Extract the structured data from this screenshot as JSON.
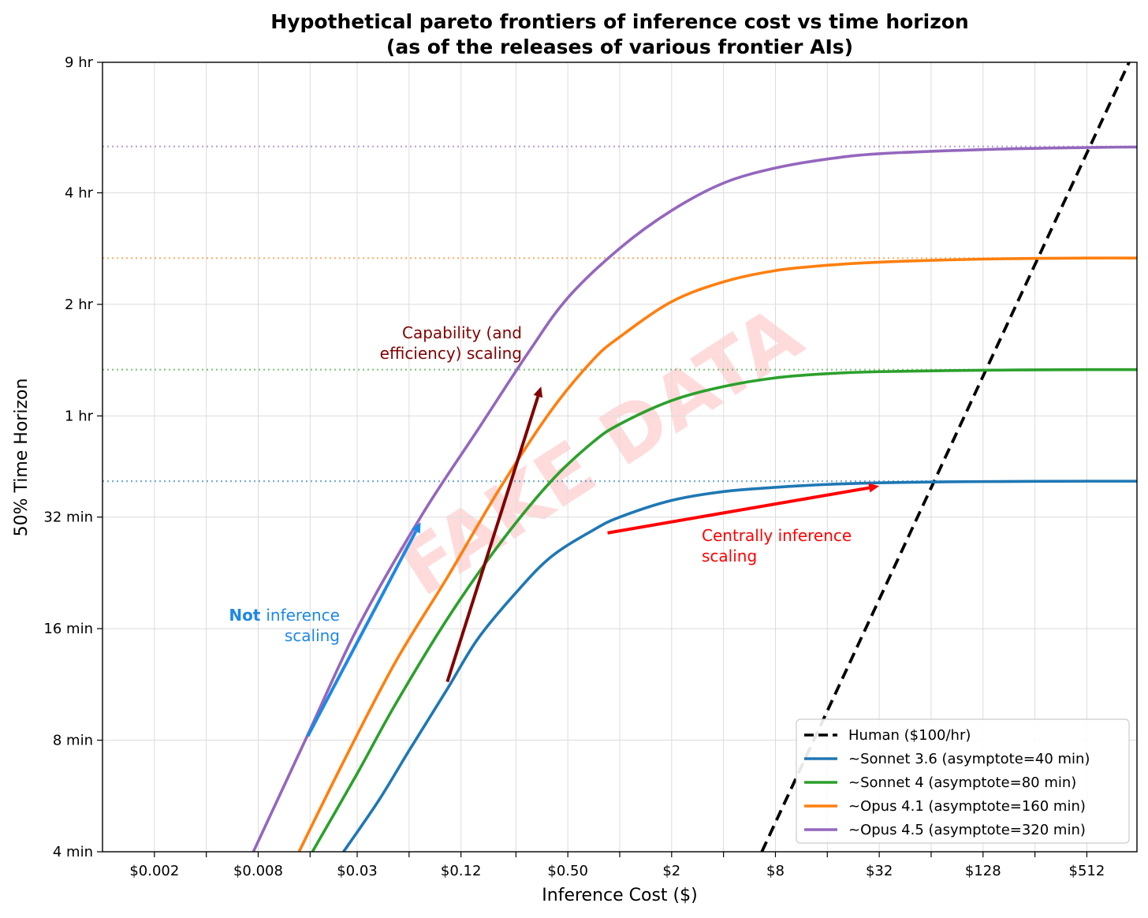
{
  "chart_data": {
    "type": "line",
    "title": "Hypothetical pareto frontiers of inference cost vs time horizon",
    "subtitle": "(as of the releases of various frontier AIs)",
    "xlabel": "Inference Cost ($)",
    "ylabel": "50% Time Horizon",
    "x_scale": "log2",
    "y_scale": "log2",
    "xlim": [
      0.001,
      1000
    ],
    "ylim": [
      4,
      540
    ],
    "x_ticks": [
      {
        "value": 0.002,
        "label": "$0.002"
      },
      {
        "value": 0.008,
        "label": "$0.008"
      },
      {
        "value": 0.03,
        "label": "$0.03"
      },
      {
        "value": 0.12,
        "label": "$0.12"
      },
      {
        "value": 0.5,
        "label": "$0.50"
      },
      {
        "value": 2,
        "label": "$2"
      },
      {
        "value": 8,
        "label": "$8"
      },
      {
        "value": 32,
        "label": "$32"
      },
      {
        "value": 128,
        "label": "$128"
      },
      {
        "value": 512,
        "label": "$512"
      }
    ],
    "x_minor_ticks": [
      0.004,
      0.016,
      0.06,
      0.25,
      1,
      4,
      16,
      64,
      256
    ],
    "y_ticks": [
      {
        "value": 4,
        "label": "4 min"
      },
      {
        "value": 8,
        "label": "8 min"
      },
      {
        "value": 16,
        "label": "16 min"
      },
      {
        "value": 32,
        "label": "32 min"
      },
      {
        "value": 60,
        "label": "1 hr"
      },
      {
        "value": 120,
        "label": "2 hr"
      },
      {
        "value": 240,
        "label": "4 hr"
      },
      {
        "value": 540,
        "label": "9 hr"
      }
    ],
    "grid": true,
    "legend_position": "bottom-right",
    "series": [
      {
        "name": "Human ($100/hr)",
        "color": "#000000",
        "style": "dashed",
        "points": [
          [
            6.67,
            4
          ],
          [
            900,
            540
          ]
        ]
      },
      {
        "name": "~Sonnet 3.6 (asymptote=40 min)",
        "color": "#1f77b4",
        "asymptote": 40,
        "points": [
          [
            0.025,
            4
          ],
          [
            0.04,
            5.5
          ],
          [
            0.06,
            7.5
          ],
          [
            0.1,
            11
          ],
          [
            0.15,
            15
          ],
          [
            0.25,
            20
          ],
          [
            0.4,
            25
          ],
          [
            0.7,
            29.5
          ],
          [
            1,
            32
          ],
          [
            2,
            35.5
          ],
          [
            4,
            37.5
          ],
          [
            8,
            38.5
          ],
          [
            16,
            39.2
          ],
          [
            32,
            39.6
          ],
          [
            64,
            39.8
          ],
          [
            128,
            39.9
          ],
          [
            512,
            40
          ],
          [
            1000,
            40
          ]
        ]
      },
      {
        "name": "~Sonnet 4 (asymptote=80 min)",
        "color": "#2ca02c",
        "asymptote": 80,
        "points": [
          [
            0.0165,
            4
          ],
          [
            0.03,
            6.5
          ],
          [
            0.05,
            10
          ],
          [
            0.1,
            17
          ],
          [
            0.2,
            27
          ],
          [
            0.4,
            40
          ],
          [
            0.7,
            51
          ],
          [
            1,
            57
          ],
          [
            2,
            66
          ],
          [
            4,
            72
          ],
          [
            8,
            76
          ],
          [
            16,
            78
          ],
          [
            32,
            79
          ],
          [
            128,
            79.7
          ],
          [
            512,
            80
          ],
          [
            1000,
            80
          ]
        ]
      },
      {
        "name": "~Opus 4.1 (asymptote=160 min)",
        "color": "#ff7f0e",
        "asymptote": 160,
        "points": [
          [
            0.0138,
            4
          ],
          [
            0.025,
            7
          ],
          [
            0.05,
            13
          ],
          [
            0.1,
            22
          ],
          [
            0.2,
            38
          ],
          [
            0.4,
            62
          ],
          [
            0.7,
            85
          ],
          [
            1,
            98
          ],
          [
            2,
            122
          ],
          [
            4,
            138
          ],
          [
            8,
            148
          ],
          [
            16,
            153
          ],
          [
            32,
            156
          ],
          [
            128,
            159
          ],
          [
            512,
            160
          ],
          [
            1000,
            160
          ]
        ]
      },
      {
        "name": "~Opus 4.5 (asymptote=320 min)",
        "color": "#9467bd",
        "asymptote": 320,
        "points": [
          [
            0.0075,
            4
          ],
          [
            0.015,
            8
          ],
          [
            0.03,
            16
          ],
          [
            0.07,
            32
          ],
          [
            0.15,
            55
          ],
          [
            0.3,
            90
          ],
          [
            0.5,
            125
          ],
          [
            1,
            170
          ],
          [
            2,
            215
          ],
          [
            4,
            255
          ],
          [
            8,
            280
          ],
          [
            16,
            296
          ],
          [
            32,
            306
          ],
          [
            128,
            314
          ],
          [
            512,
            318
          ],
          [
            1000,
            319
          ]
        ]
      }
    ],
    "annotations": [
      {
        "text_lines": [
          "Capability (and",
          "efficiency) scaling"
        ],
        "color": "#800000",
        "arrow_from": [
          0.1,
          11.5
        ],
        "arrow_to": [
          0.35,
          72
        ]
      },
      {
        "text_lines": [
          "Centrally inference",
          "scaling"
        ],
        "color": "#ff0000",
        "arrow_from": [
          0.85,
          29
        ],
        "arrow_to": [
          32,
          38.8
        ]
      },
      {
        "text_lines": [
          "inference",
          "scaling"
        ],
        "bold_prefix": "Not",
        "color": "#1e88e5",
        "arrow_from": [
          0.0155,
          8.2
        ],
        "arrow_to": [
          0.07,
          31
        ]
      }
    ],
    "watermark": "FAKE DATA"
  }
}
